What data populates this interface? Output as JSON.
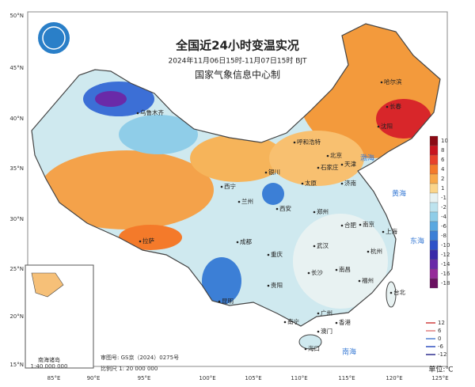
{
  "header": {
    "title": "全国近24小时变温实况",
    "subtitle": "2024年11月06日15时-11月07日15时 BJT",
    "agency": "国家气象信息中心制"
  },
  "lat_labels": [
    "50°N",
    "45°N",
    "40°N",
    "35°N",
    "30°N",
    "25°N",
    "20°N",
    "15°N"
  ],
  "lon_labels": [
    "85°E",
    "90°E",
    "95°E",
    "100°E",
    "105°E",
    "110°E",
    "115°E",
    "120°E",
    "125°E"
  ],
  "colorbar": {
    "labels": [
      "10",
      "8",
      "6",
      "4",
      "2",
      "1",
      "-1",
      "-2",
      "-4",
      "-6",
      "-8",
      "-10",
      "-12",
      "-14",
      "-16",
      "-18"
    ],
    "colors": [
      "#8b0a14",
      "#c8141e",
      "#e8412a",
      "#f47a2a",
      "#f8a94a",
      "#fbd58a",
      "#e8f2f2",
      "#bde3ee",
      "#8fcde8",
      "#5aa8e0",
      "#3c7fd6",
      "#2e52c8",
      "#3a2aa8",
      "#6a2aa8",
      "#962a9a",
      "#6a1060"
    ]
  },
  "contour_legend": {
    "labels": [
      "12",
      "6",
      "0",
      "-6",
      "-12"
    ],
    "colors": [
      "#d04040",
      "#e08080",
      "#5080d0",
      "#3050c0",
      "#303090"
    ]
  },
  "unit": "单位:℃",
  "cities": [
    "乌鲁木齐",
    "哈尔滨",
    "长春",
    "沈阳",
    "呼和浩特",
    "北京",
    "天津",
    "石家庄",
    "太原",
    "银川",
    "西宁",
    "兰州",
    "济南",
    "郑州",
    "西安",
    "拉萨",
    "成都",
    "重庆",
    "武汉",
    "合肥",
    "南京",
    "上海",
    "杭州",
    "长沙",
    "南昌",
    "福州",
    "贵阳",
    "昆明",
    "南宁",
    "广州",
    "香港",
    "澳门",
    "海口",
    "台北"
  ],
  "seas": [
    "渤海",
    "黄海",
    "东海",
    "南海"
  ],
  "inset": {
    "title": "南海诸岛",
    "scale": "1:40 000 000"
  },
  "footer": {
    "approval": "审图号: GS京（2024）0275号",
    "scale": "比例尺 1: 20 000 000"
  }
}
